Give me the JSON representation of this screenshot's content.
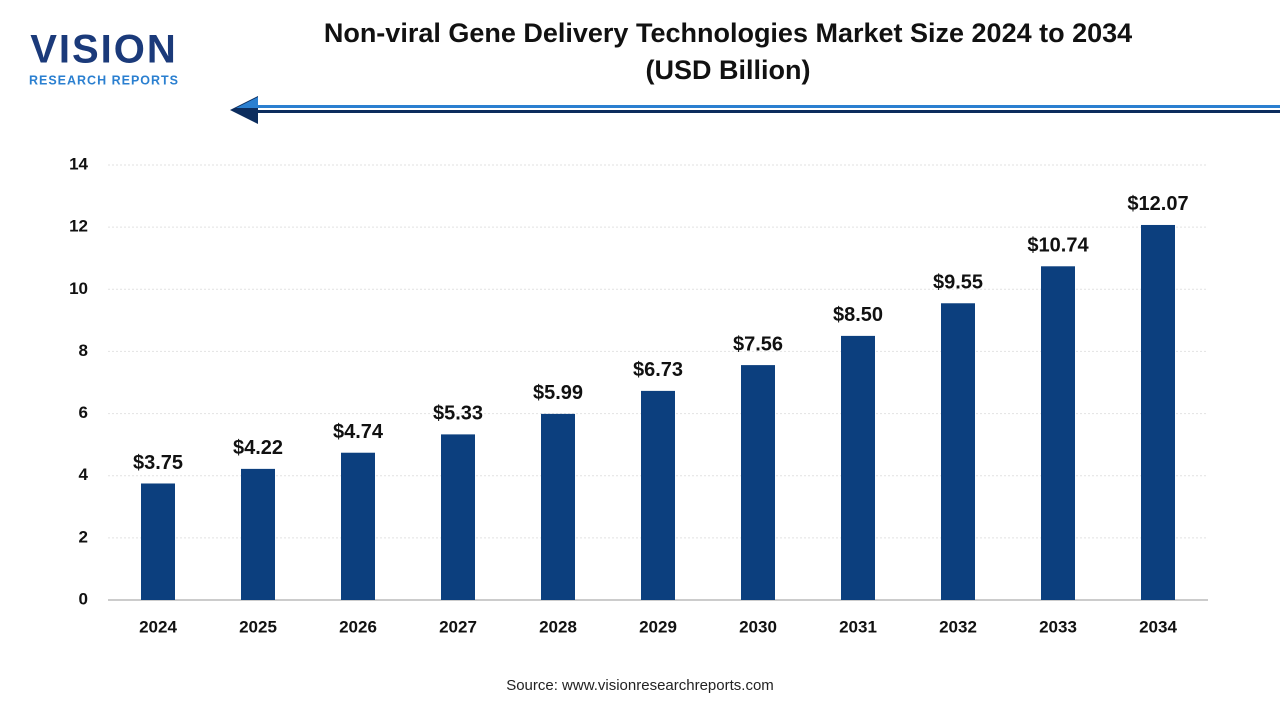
{
  "logo": {
    "name": "VISION",
    "tagline": "RESEARCH REPORTS"
  },
  "chart_data": {
    "type": "bar",
    "title": "Non-viral Gene Delivery Technologies Market Size 2024 to 2034",
    "subtitle": "(USD Billion)",
    "categories": [
      "2024",
      "2025",
      "2026",
      "2027",
      "2028",
      "2029",
      "2030",
      "2031",
      "2032",
      "2033",
      "2034"
    ],
    "values": [
      3.75,
      4.22,
      4.74,
      5.33,
      5.99,
      6.73,
      7.56,
      8.5,
      9.55,
      10.74,
      12.07
    ],
    "value_labels": [
      "$3.75",
      "$4.22",
      "$4.74",
      "$5.33",
      "$5.99",
      "$6.73",
      "$7.56",
      "$8.50",
      "$9.55",
      "$10.74",
      "$12.07"
    ],
    "color": "#0c3f7e",
    "ylim": [
      0,
      14
    ],
    "yticks": [
      0,
      2,
      4,
      6,
      8,
      10,
      12,
      14
    ],
    "grid": true,
    "source": "Source: www.visionresearchreports.com"
  }
}
